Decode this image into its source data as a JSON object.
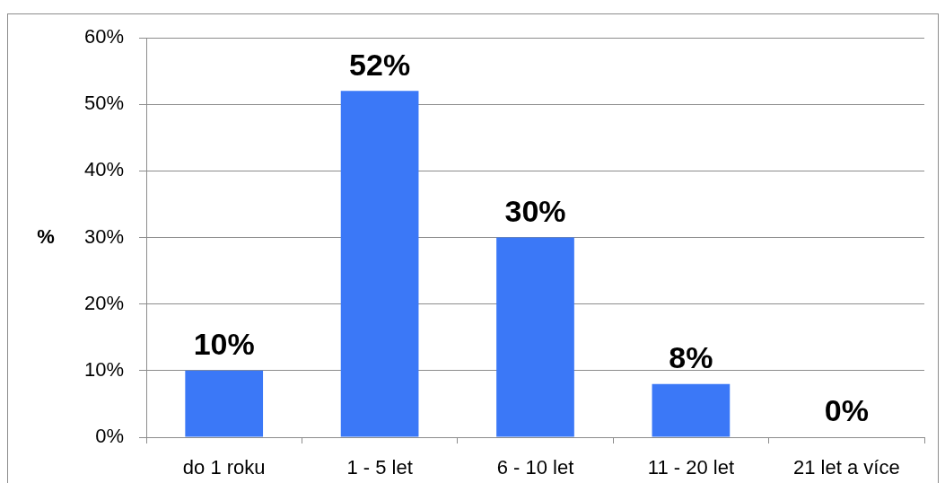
{
  "chart_data": {
    "type": "bar",
    "ylabel": "%",
    "categories": [
      "do 1 roku",
      "1 - 5 let",
      "6 - 10 let",
      "11 - 20 let",
      "21 let a více"
    ],
    "values": [
      10,
      52,
      30,
      8,
      0
    ],
    "color": "#3b78f7",
    "value_labels": [
      "10%",
      "52%",
      "30%",
      "8%",
      "0%"
    ],
    "ylim": [
      0,
      60
    ],
    "yticks": [
      {
        "value": 0,
        "label": "0%"
      },
      {
        "value": 10,
        "label": "10%"
      },
      {
        "value": 20,
        "label": "20%"
      },
      {
        "value": 30,
        "label": "30%"
      },
      {
        "value": 40,
        "label": "40%"
      },
      {
        "value": 50,
        "label": "50%"
      },
      {
        "value": 60,
        "label": "60%"
      }
    ],
    "grid": "y"
  }
}
